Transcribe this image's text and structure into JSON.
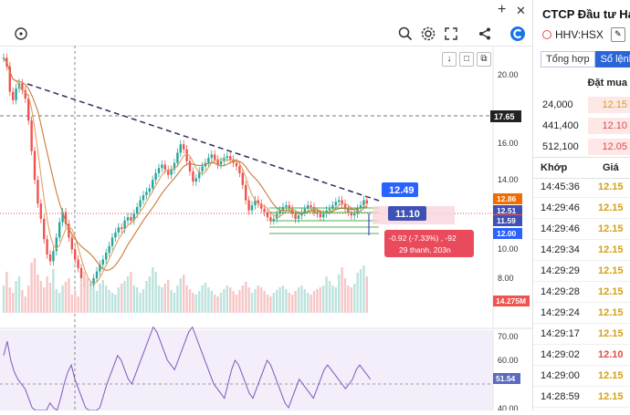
{
  "header": {
    "plus_icon": "+",
    "close_icon": "✕"
  },
  "toolbar": {
    "icons": [
      "zoom-icon",
      "settings-icon",
      "fullscreen-icon",
      "share-icon",
      "brand-logo"
    ]
  },
  "chart_controls": {
    "down_label": "↓",
    "stop_label": "□",
    "restore_label": "⧉"
  },
  "chart_data": {
    "type": "candlestick",
    "price_axis": {
      "ticks": [
        "20.00",
        "16.00",
        "14.00",
        "10.00",
        "8.00"
      ]
    },
    "price_labels": {
      "current_line": "17.65",
      "red_a": "12.86",
      "blue_a": "12.51",
      "red_b": "12.15",
      "blue_b": "11.59",
      "blue_c": "12.00",
      "volume": "14.275M"
    },
    "annotations": {
      "measure_top": "12.49",
      "measure_bottom": "11.10",
      "measure_info_line1": "-0.92 (-7.33%) , -92",
      "measure_info_line2": "29 thanh, 203n"
    },
    "rsi_axis": {
      "ticks": [
        "70.00",
        "60.00",
        "40.00"
      ],
      "current": "51.54"
    }
  },
  "sidebar": {
    "title": "CTCP Đầu tư Hạ tầ",
    "symbol": "HHV:HSX",
    "tabs": [
      "Tổng hợp",
      "Sổ lệnh"
    ],
    "bid_header": "Đặt mua",
    "bids": [
      {
        "qty": "24,000",
        "price": "12.15",
        "color": "#d4a017"
      },
      {
        "qty": "441,400",
        "price": "12.10",
        "color": "#e04a4a"
      },
      {
        "qty": "512,100",
        "price": "12.05",
        "color": "#e04a4a"
      }
    ],
    "match_header": {
      "time": "Khớp",
      "price": "Giá"
    },
    "matches": [
      {
        "time": "14:45:36",
        "price": "12.15",
        "color": "#d4a017"
      },
      {
        "time": "14:29:46",
        "price": "12.15",
        "color": "#d4a017"
      },
      {
        "time": "14:29:46",
        "price": "12.15",
        "color": "#d4a017"
      },
      {
        "time": "14:29:34",
        "price": "12.15",
        "color": "#d4a017"
      },
      {
        "time": "14:29:29",
        "price": "12.15",
        "color": "#d4a017"
      },
      {
        "time": "14:29:28",
        "price": "12.15",
        "color": "#d4a017"
      },
      {
        "time": "14:29:24",
        "price": "12.15",
        "color": "#d4a017"
      },
      {
        "time": "14:29:17",
        "price": "12.15",
        "color": "#d4a017"
      },
      {
        "time": "14:29:02",
        "price": "12.10",
        "color": "#e04a4a"
      },
      {
        "time": "14:29:00",
        "price": "12.15",
        "color": "#d4a017"
      },
      {
        "time": "14:28:59",
        "price": "12.15",
        "color": "#d4a017"
      }
    ]
  }
}
